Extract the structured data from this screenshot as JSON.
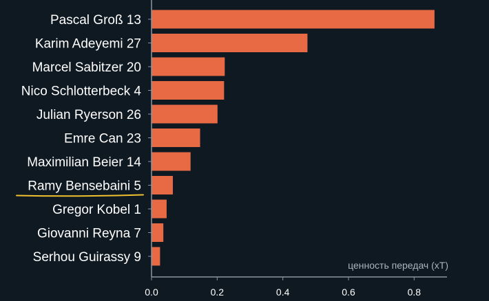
{
  "chart_data": {
    "type": "bar",
    "orientation": "horizontal",
    "categories": [
      "Pascal Groß 13",
      "Karim Adeyemi 27",
      "Marcel Sabitzer 20",
      "Nico Schlotterbeck 4",
      "Julian Ryerson 26",
      "Emre Can 23",
      "Maximilian Beier 14",
      "Ramy Bensebaini 5",
      "Gregor Kobel 1",
      "Giovanni Reyna 7",
      "Serhou Guirassy 9"
    ],
    "values": [
      0.862,
      0.475,
      0.223,
      0.221,
      0.201,
      0.148,
      0.119,
      0.065,
      0.046,
      0.036,
      0.026
    ],
    "xlabel": "ценность передач (xT)",
    "xlim": [
      0,
      0.9
    ],
    "xticks": [
      0.0,
      0.2,
      0.4,
      0.6,
      0.8
    ],
    "xtick_labels": [
      "0.0",
      "0.2",
      "0.4",
      "0.6",
      "0.8"
    ],
    "highlighted_category": "Ramy Bensebaini 5",
    "grid": false,
    "colors": {
      "bar": "#e86a45",
      "background": "#0f1921",
      "axis": "#8a98a3",
      "text": "#ffffff",
      "axis_title": "#aab4bc",
      "highlight_underline": "#f2c12e"
    }
  }
}
